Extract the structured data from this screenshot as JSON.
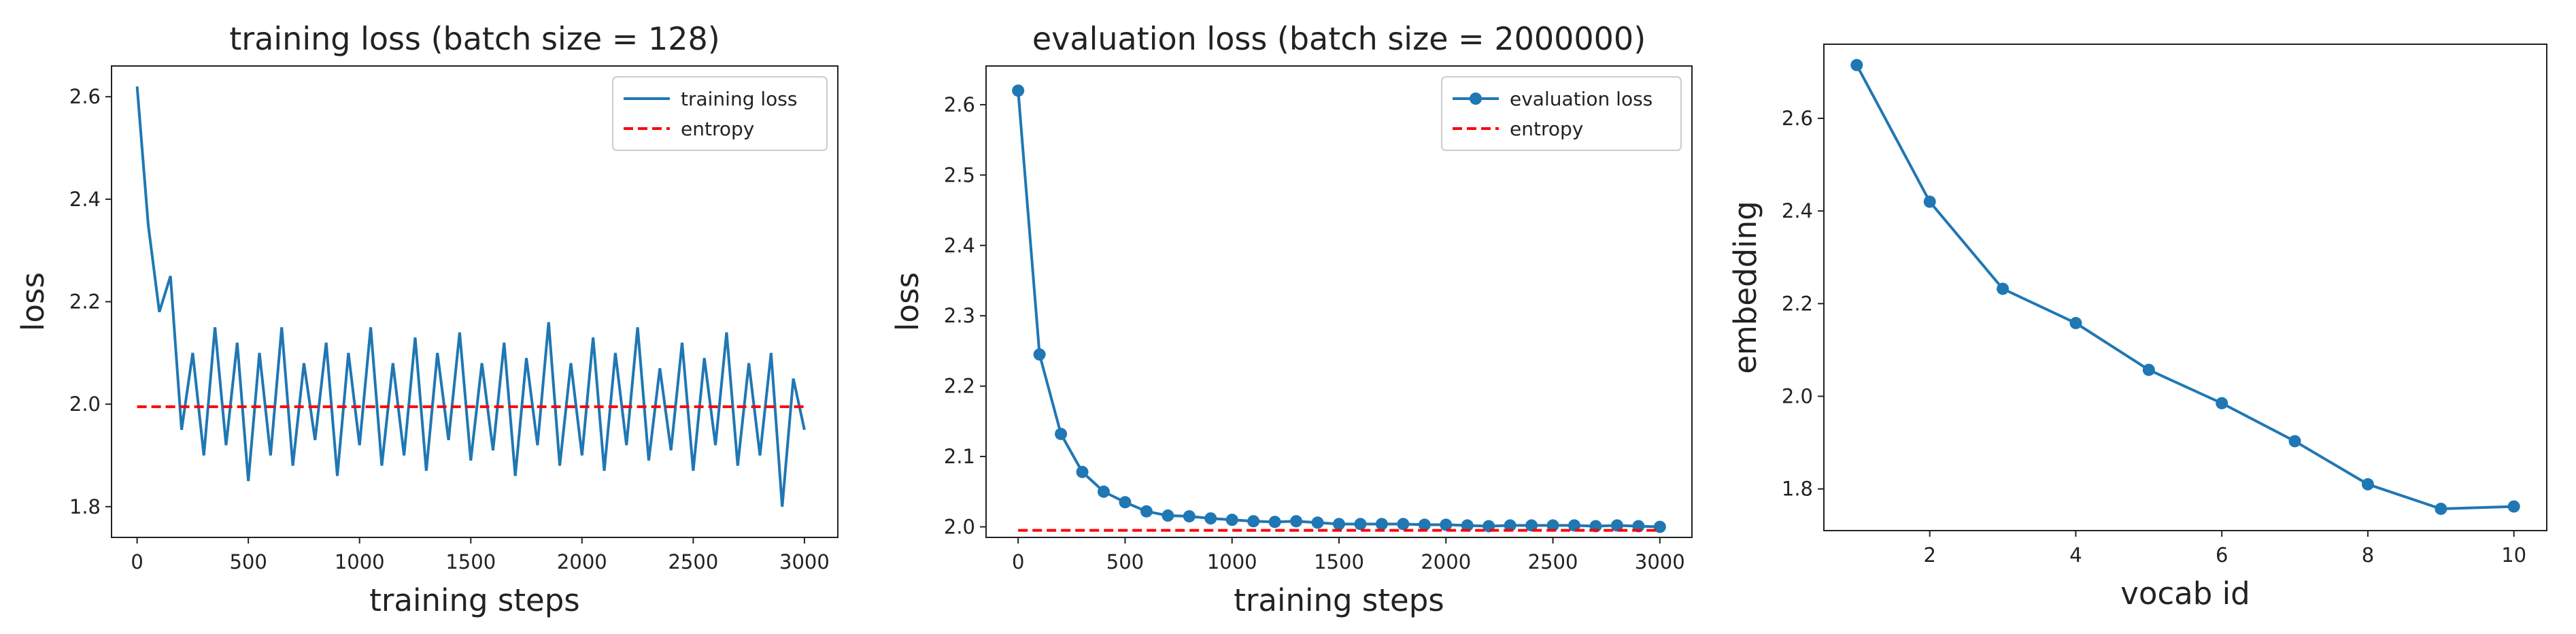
{
  "chart_data": [
    {
      "type": "line",
      "title": "training loss (batch size = 128)",
      "xlabel": "training steps",
      "ylabel": "loss",
      "xlim": [
        -115,
        3150
      ],
      "ylim": [
        1.74,
        2.66
      ],
      "xticks": [
        0,
        500,
        1000,
        1500,
        2000,
        2500,
        3000
      ],
      "yticks": [
        {
          "value": 1.8,
          "label": "1.8"
        },
        {
          "value": 2.0,
          "label": "2.0"
        },
        {
          "value": 2.2,
          "label": "2.2"
        },
        {
          "value": 2.4,
          "label": "2.4"
        },
        {
          "value": 2.6,
          "label": "2.6"
        }
      ],
      "legend": "upper right",
      "series": [
        {
          "name": "training loss",
          "color": "#1f77b4",
          "linestyle": "solid",
          "x": [
            0,
            50,
            100,
            150,
            200,
            250,
            300,
            350,
            400,
            450,
            500,
            550,
            600,
            650,
            700,
            750,
            800,
            850,
            900,
            950,
            1000,
            1050,
            1100,
            1150,
            1200,
            1250,
            1300,
            1350,
            1400,
            1450,
            1500,
            1550,
            1600,
            1650,
            1700,
            1750,
            1800,
            1850,
            1900,
            1950,
            2000,
            2050,
            2100,
            2150,
            2200,
            2250,
            2300,
            2350,
            2400,
            2450,
            2500,
            2550,
            2600,
            2650,
            2700,
            2750,
            2800,
            2850,
            2900,
            2950,
            3000
          ],
          "values": [
            2.62,
            2.35,
            2.18,
            2.25,
            1.95,
            2.1,
            1.9,
            2.15,
            1.92,
            2.12,
            1.85,
            2.1,
            1.9,
            2.15,
            1.88,
            2.08,
            1.93,
            2.12,
            1.86,
            2.1,
            1.92,
            2.15,
            1.88,
            2.08,
            1.9,
            2.13,
            1.87,
            2.1,
            1.93,
            2.14,
            1.89,
            2.08,
            1.91,
            2.12,
            1.86,
            2.09,
            1.92,
            2.16,
            1.88,
            2.08,
            1.9,
            2.13,
            1.87,
            2.1,
            1.92,
            2.15,
            1.89,
            2.07,
            1.91,
            2.12,
            1.87,
            2.09,
            1.92,
            2.14,
            1.88,
            2.08,
            1.9,
            2.1,
            1.8,
            2.05,
            1.95
          ]
        },
        {
          "name": "entropy",
          "color": "#ff0000",
          "linestyle": "dashed",
          "x": [
            0,
            3000
          ],
          "values": [
            1.995,
            1.995
          ]
        }
      ]
    },
    {
      "type": "line",
      "title": "evaluation loss (batch size = 2000000)",
      "xlabel": "training steps",
      "ylabel": "loss",
      "xlim": [
        -150,
        3150
      ],
      "ylim": [
        1.985,
        2.655
      ],
      "xticks": [
        0,
        500,
        1000,
        1500,
        2000,
        2500,
        3000
      ],
      "yticks": [
        {
          "value": 2.0,
          "label": "2.0"
        },
        {
          "value": 2.1,
          "label": "2.1"
        },
        {
          "value": 2.2,
          "label": "2.2"
        },
        {
          "value": 2.3,
          "label": "2.3"
        },
        {
          "value": 2.4,
          "label": "2.4"
        },
        {
          "value": 2.5,
          "label": "2.5"
        },
        {
          "value": 2.6,
          "label": "2.6"
        }
      ],
      "legend": "upper right",
      "series": [
        {
          "name": "evaluation loss",
          "color": "#1f77b4",
          "linestyle": "solid",
          "marker": "o",
          "x": [
            0,
            100,
            200,
            300,
            400,
            500,
            600,
            700,
            800,
            900,
            1000,
            1100,
            1200,
            1300,
            1400,
            1500,
            1600,
            1700,
            1800,
            1900,
            2000,
            2100,
            2200,
            2300,
            2400,
            2500,
            2600,
            2700,
            2800,
            2900,
            3000
          ],
          "values": [
            2.62,
            2.245,
            2.132,
            2.078,
            2.05,
            2.035,
            2.022,
            2.016,
            2.015,
            2.012,
            2.01,
            2.008,
            2.007,
            2.008,
            2.006,
            2.004,
            2.004,
            2.004,
            2.004,
            2.003,
            2.003,
            2.002,
            2.001,
            2.002,
            2.002,
            2.002,
            2.002,
            2.001,
            2.002,
            2.001,
            2.0
          ]
        },
        {
          "name": "entropy",
          "color": "#ff0000",
          "linestyle": "dashed",
          "x": [
            0,
            3000
          ],
          "values": [
            1.995,
            1.995
          ]
        }
      ]
    },
    {
      "type": "line",
      "xlabel": "vocab id",
      "ylabel": "embedding",
      "xlim": [
        0.55,
        10.45
      ],
      "ylim": [
        1.71,
        2.76
      ],
      "xticks": [
        2,
        4,
        6,
        8,
        10
      ],
      "yticks": [
        {
          "value": 1.8,
          "label": "1.8"
        },
        {
          "value": 2.0,
          "label": "2.0"
        },
        {
          "value": 2.2,
          "label": "2.2"
        },
        {
          "value": 2.4,
          "label": "2.4"
        },
        {
          "value": 2.6,
          "label": "2.6"
        }
      ],
      "series": [
        {
          "color": "#1f77b4",
          "linestyle": "solid",
          "marker": "o",
          "x": [
            1,
            2,
            3,
            4,
            5,
            6,
            7,
            8,
            9,
            10
          ],
          "values": [
            2.715,
            2.42,
            2.232,
            2.158,
            2.057,
            1.985,
            1.903,
            1.81,
            1.757,
            1.762
          ]
        }
      ]
    }
  ]
}
